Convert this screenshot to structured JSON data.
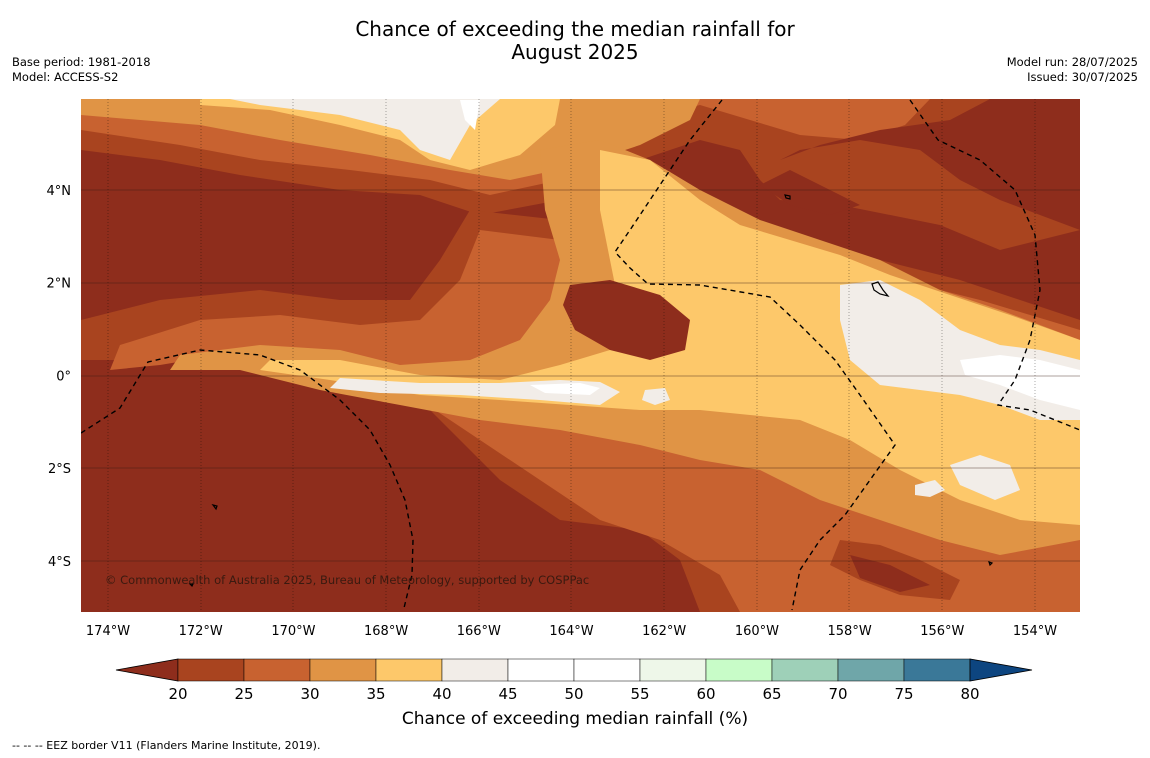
{
  "title": {
    "line1": "Chance of exceeding the median rainfall for",
    "line2": "August 2025"
  },
  "meta_left": {
    "base_period": "Base period: 1981-2018",
    "model": "Model: ACCESS-S2"
  },
  "meta_right": {
    "model_run": "Model run: 28/07/2025",
    "issued": "Issued: 30/07/2025"
  },
  "map": {
    "copyright": "© Commonwealth of Australia 2025, Bureau of Meteorology, supported by COSPPac",
    "lon_labels": [
      "174°W",
      "172°W",
      "170°W",
      "168°W",
      "166°W",
      "164°W",
      "162°W",
      "160°W",
      "158°W",
      "156°W",
      "154°W"
    ],
    "lat_labels": [
      "4°N",
      "2°N",
      "0°",
      "2°S",
      "4°S"
    ]
  },
  "colorbar": {
    "ticks": [
      "20",
      "25",
      "30",
      "35",
      "40",
      "45",
      "50",
      "55",
      "60",
      "65",
      "70",
      "75",
      "80"
    ],
    "colors": [
      "#8e2d1c",
      "#a9441f",
      "#c86230",
      "#e09445",
      "#fdc86a",
      "#f2ede8",
      "#ffffff",
      "#ffffff",
      "#eef7e9",
      "#c8fcc8",
      "#9ed0b8",
      "#6fa6a9",
      "#3a7898",
      "#0d4580"
    ],
    "label": "Chance of exceeding median rainfall (%)"
  },
  "footnote": "--  --  -- EEZ border V11 (Flanders Marine Institute, 2019)."
}
